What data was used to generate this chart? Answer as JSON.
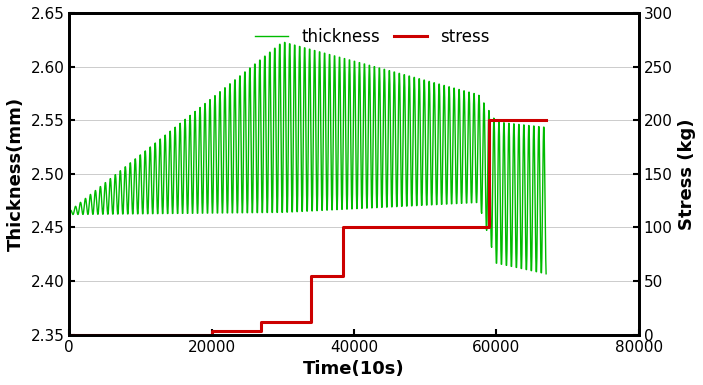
{
  "title": "",
  "xlabel": "Time(10s)",
  "ylabel_left": "Thickness(mm)",
  "ylabel_right": "Stress (kg)",
  "xlim": [
    0,
    80000
  ],
  "ylim_left": [
    2.35,
    2.65
  ],
  "ylim_right": [
    0,
    300
  ],
  "yticks_left": [
    2.35,
    2.4,
    2.45,
    2.5,
    2.55,
    2.6,
    2.65
  ],
  "yticks_right": [
    0,
    50,
    100,
    150,
    200,
    250,
    300
  ],
  "xticks": [
    0,
    20000,
    40000,
    60000,
    80000
  ],
  "green_color": "#00bb00",
  "red_color": "#cc0000",
  "bg_color": "#ffffff",
  "legend_entries": [
    "thickness",
    "stress"
  ],
  "figsize": [
    7.03,
    3.85
  ],
  "dpi": 100,
  "linewidth_green": 1.0,
  "linewidth_red": 2.2,
  "axis_linewidth": 2.0,
  "font_size_label": 13,
  "font_size_tick": 11,
  "font_size_legend": 12,
  "stress_steps": [
    [
      0,
      0
    ],
    [
      20000,
      0
    ],
    [
      20000,
      3
    ],
    [
      27000,
      3
    ],
    [
      27000,
      12
    ],
    [
      34000,
      12
    ],
    [
      34000,
      55
    ],
    [
      38500,
      55
    ],
    [
      38500,
      100
    ],
    [
      59000,
      100
    ],
    [
      59000,
      200
    ],
    [
      67000,
      200
    ]
  ],
  "cycle_period": 700,
  "t_total": 67000,
  "dt": 50
}
